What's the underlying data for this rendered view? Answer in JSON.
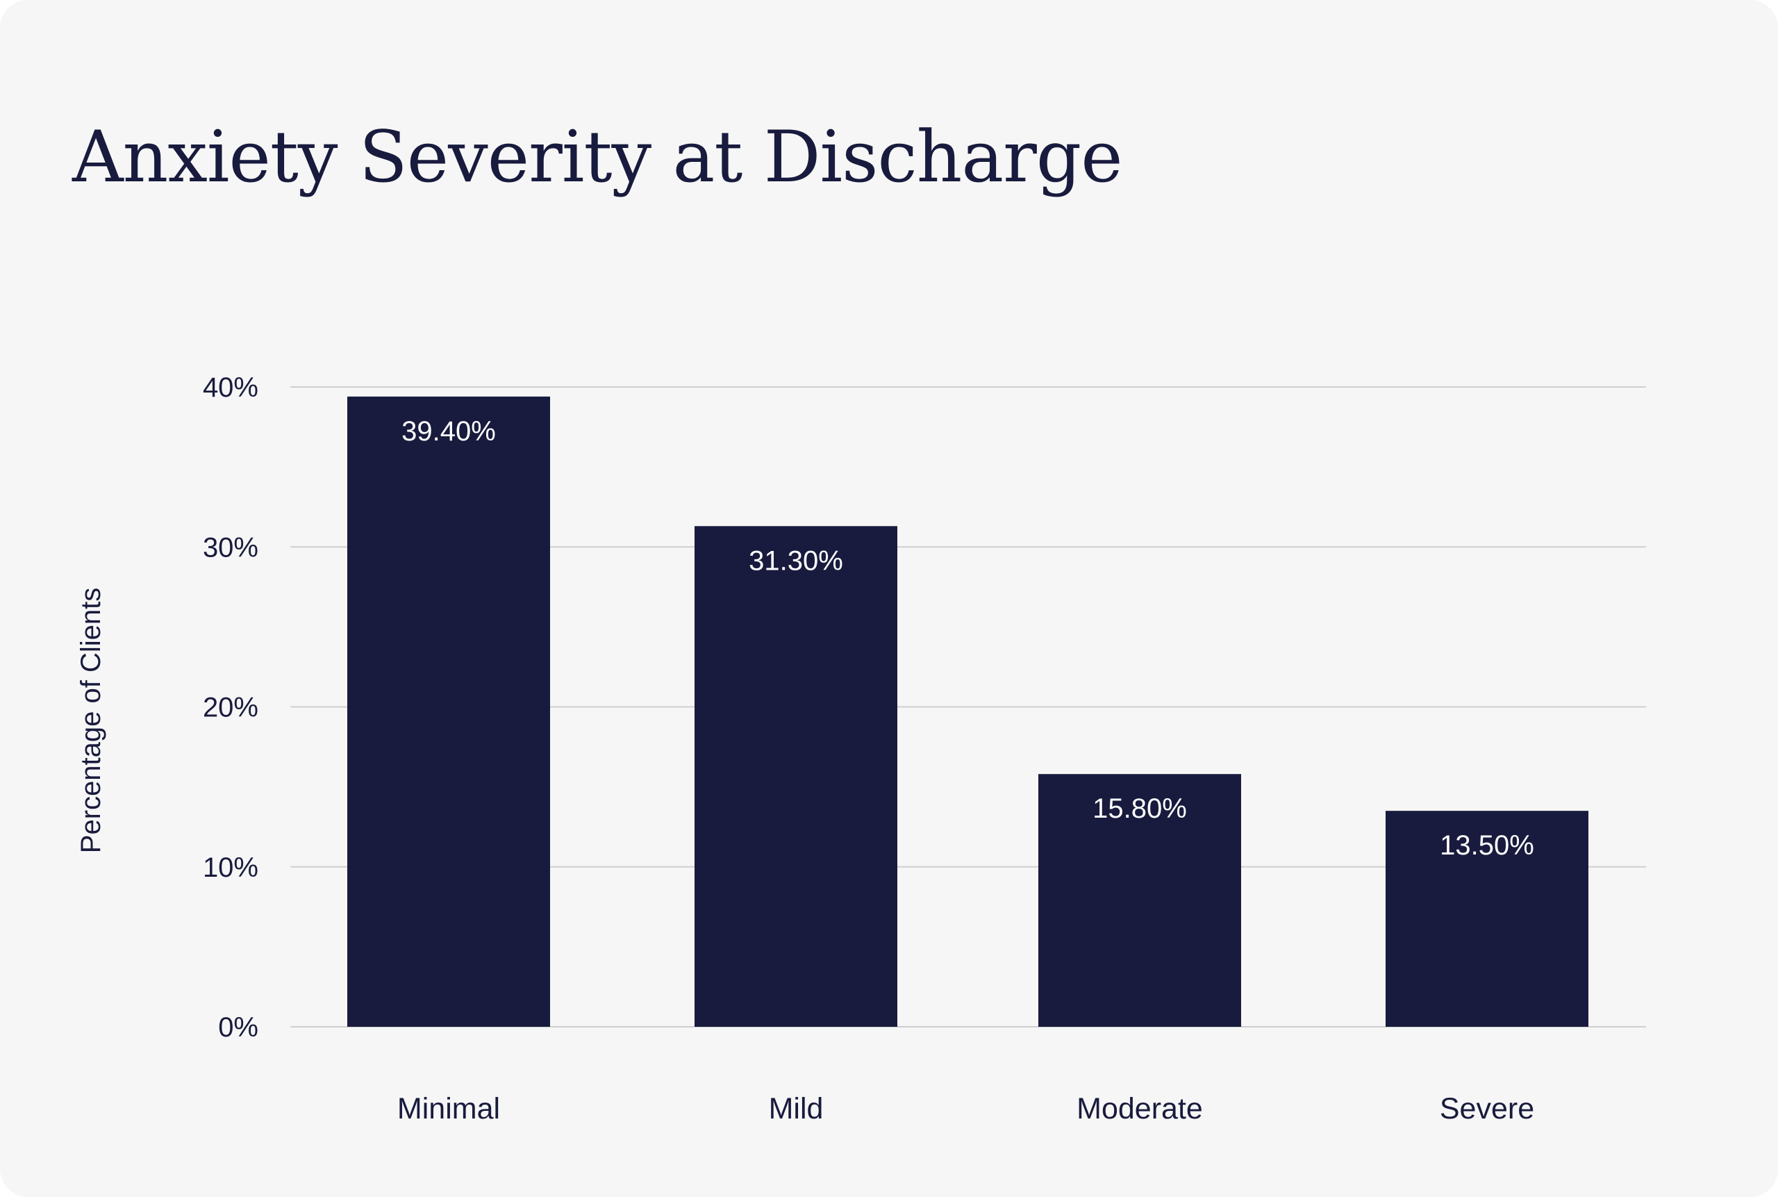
{
  "chart_data": {
    "type": "bar",
    "title": "Anxiety Severity at Discharge",
    "xlabel": "",
    "ylabel": "Percentage of Clients",
    "categories": [
      "Minimal",
      "Mild",
      "Moderate",
      "Severe"
    ],
    "values": [
      39.4,
      31.3,
      15.8,
      13.5
    ],
    "value_labels": [
      "39.40%",
      "31.30%",
      "15.80%",
      "13.50%"
    ],
    "ylim": [
      0,
      40
    ],
    "yticks": [
      0,
      10,
      20,
      30,
      40
    ],
    "ytick_labels": [
      "0%",
      "10%",
      "20%",
      "30%",
      "40%"
    ],
    "grid": true,
    "colors": {
      "bar": "#181b3d",
      "grid": "#cfcfcf",
      "text": "#181b3d",
      "background": "#f6f6f6"
    }
  }
}
